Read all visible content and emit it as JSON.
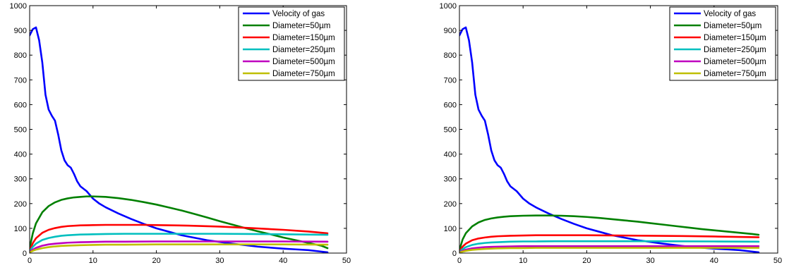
{
  "chart_data": [
    {
      "type": "line",
      "title": "",
      "xlabel": "",
      "ylabel": "",
      "xlim": [
        0,
        50
      ],
      "ylim": [
        0,
        1000
      ],
      "xticks": [
        "0",
        "10",
        "20",
        "30",
        "40",
        "50"
      ],
      "yticks": [
        "0",
        "100",
        "200",
        "300",
        "400",
        "500",
        "600",
        "700",
        "800",
        "900",
        "1000"
      ],
      "grid": false,
      "legend_position": "top-right",
      "series": [
        {
          "name": "Velocity of gas",
          "color": "#0000ff",
          "x": [
            0,
            0.5,
            1,
            1.5,
            2,
            2.5,
            3,
            3.5,
            4,
            4.5,
            5,
            5.5,
            6,
            6.5,
            7,
            7.5,
            8,
            9,
            10,
            11,
            12,
            14,
            16,
            18,
            20,
            22,
            24,
            26,
            28,
            30,
            32,
            34,
            36,
            38,
            40,
            42,
            44,
            46,
            47
          ],
          "y": [
            880,
            905,
            912,
            860,
            770,
            640,
            580,
            555,
            535,
            480,
            415,
            375,
            355,
            345,
            320,
            290,
            270,
            250,
            220,
            200,
            185,
            160,
            138,
            118,
            100,
            86,
            72,
            62,
            52,
            45,
            38,
            32,
            26,
            22,
            18,
            15,
            12,
            6,
            3
          ]
        },
        {
          "name": "Diameter=50µm",
          "color": "#008000",
          "x": [
            0,
            0.5,
            1,
            2,
            3,
            4,
            5,
            6,
            7,
            8,
            9,
            10,
            12,
            14,
            16,
            18,
            20,
            22,
            24,
            26,
            28,
            30,
            32,
            34,
            36,
            38,
            40,
            42,
            44,
            46,
            47
          ],
          "y": [
            20,
            80,
            120,
            165,
            190,
            205,
            215,
            221,
            225,
            227,
            229,
            229,
            227,
            222,
            215,
            206,
            196,
            184,
            172,
            158,
            144,
            129,
            115,
            101,
            88,
            76,
            63,
            52,
            41,
            30,
            20
          ]
        },
        {
          "name": "Diameter=150µm",
          "color": "#ff0000",
          "x": [
            0,
            0.5,
            1,
            2,
            3,
            4,
            5,
            6,
            8,
            10,
            12,
            14,
            16,
            18,
            20,
            25,
            30,
            35,
            40,
            44,
            47
          ],
          "y": [
            10,
            40,
            60,
            82,
            94,
            101,
            106,
            109,
            112,
            113,
            114,
            114,
            114,
            114,
            113,
            111,
            107,
            101,
            94,
            87,
            80
          ]
        },
        {
          "name": "Diameter=250µm",
          "color": "#00bfbf",
          "x": [
            0,
            0.5,
            1,
            2,
            3,
            4,
            5,
            6,
            8,
            10,
            12,
            15,
            20,
            25,
            30,
            35,
            40,
            47
          ],
          "y": [
            8,
            25,
            38,
            53,
            61,
            66,
            70,
            72,
            75,
            76,
            77,
            78,
            78,
            78,
            78,
            77,
            76,
            74
          ]
        },
        {
          "name": "Diameter=500µm",
          "color": "#bf00bf",
          "x": [
            0,
            0.5,
            1,
            2,
            3,
            4,
            5,
            6,
            8,
            10,
            12,
            15,
            20,
            30,
            40,
            47
          ],
          "y": [
            5,
            14,
            21,
            30,
            35,
            38,
            40,
            42,
            44,
            45,
            46,
            46,
            47,
            47,
            47,
            46
          ]
        },
        {
          "name": "Diameter=750µm",
          "color": "#bfbf00",
          "x": [
            0,
            0.5,
            1,
            2,
            3,
            4,
            5,
            6,
            8,
            10,
            12,
            15,
            20,
            30,
            40,
            47
          ],
          "y": [
            3,
            9,
            14,
            20,
            24,
            27,
            29,
            30,
            32,
            33,
            34,
            34,
            35,
            35,
            35,
            34
          ]
        }
      ]
    },
    {
      "type": "line",
      "title": "",
      "xlabel": "",
      "ylabel": "",
      "xlim": [
        0,
        50
      ],
      "ylim": [
        0,
        1000
      ],
      "xticks": [
        "0",
        "10",
        "20",
        "30",
        "40",
        "50"
      ],
      "yticks": [
        "0",
        "100",
        "200",
        "300",
        "400",
        "500",
        "600",
        "700",
        "800",
        "900",
        "1000"
      ],
      "grid": false,
      "legend_position": "top-right",
      "series": [
        {
          "name": "Velocity of gas",
          "color": "#0000ff",
          "x": [
            0,
            0.5,
            1,
            1.5,
            2,
            2.5,
            3,
            3.5,
            4,
            4.5,
            5,
            5.5,
            6,
            6.5,
            7,
            7.5,
            8,
            9,
            10,
            11,
            12,
            14,
            16,
            18,
            20,
            22,
            24,
            26,
            28,
            30,
            32,
            34,
            36,
            38,
            40,
            42,
            44,
            46,
            47
          ],
          "y": [
            880,
            905,
            912,
            860,
            770,
            640,
            580,
            555,
            535,
            480,
            415,
            375,
            355,
            345,
            320,
            290,
            270,
            250,
            220,
            200,
            185,
            160,
            138,
            118,
            100,
            86,
            72,
            62,
            52,
            45,
            38,
            32,
            26,
            22,
            18,
            15,
            12,
            6,
            3
          ]
        },
        {
          "name": "Diameter=50µm",
          "color": "#008000",
          "x": [
            0,
            0.5,
            1,
            2,
            3,
            4,
            5,
            6,
            7,
            8,
            10,
            12,
            14,
            16,
            18,
            20,
            22,
            24,
            26,
            28,
            30,
            32,
            34,
            36,
            38,
            40,
            42,
            44,
            46,
            47
          ],
          "y": [
            12,
            55,
            80,
            108,
            124,
            134,
            140,
            144,
            147,
            149,
            151,
            152,
            152,
            151,
            149,
            146,
            142,
            137,
            132,
            127,
            121,
            115,
            109,
            103,
            97,
            92,
            87,
            82,
            77,
            74
          ]
        },
        {
          "name": "Diameter=150µm",
          "color": "#ff0000",
          "x": [
            0,
            0.5,
            1,
            2,
            3,
            4,
            5,
            6,
            8,
            10,
            12,
            15,
            20,
            25,
            30,
            35,
            40,
            47
          ],
          "y": [
            6,
            26,
            38,
            52,
            59,
            63,
            66,
            68,
            70,
            71,
            72,
            72,
            72,
            71,
            70,
            69,
            67,
            64
          ]
        },
        {
          "name": "Diameter=250µm",
          "color": "#00bfbf",
          "x": [
            0,
            0.5,
            1,
            2,
            3,
            4,
            5,
            6,
            8,
            10,
            12,
            15,
            20,
            30,
            40,
            47
          ],
          "y": [
            4,
            16,
            24,
            33,
            38,
            41,
            43,
            44,
            46,
            47,
            47,
            48,
            48,
            48,
            47,
            46
          ]
        },
        {
          "name": "Diameter=500µm",
          "color": "#bf00bf",
          "x": [
            0,
            0.5,
            1,
            2,
            3,
            4,
            5,
            6,
            8,
            10,
            12,
            15,
            20,
            30,
            40,
            47
          ],
          "y": [
            3,
            9,
            14,
            19,
            22,
            24,
            25,
            26,
            27,
            28,
            28,
            28,
            28,
            28,
            28,
            28
          ]
        },
        {
          "name": "Diameter=750µm",
          "color": "#bfbf00",
          "x": [
            0,
            0.5,
            1,
            2,
            3,
            4,
            5,
            6,
            8,
            10,
            12,
            15,
            20,
            30,
            40,
            47
          ],
          "y": [
            2,
            6,
            9,
            13,
            15,
            17,
            18,
            19,
            20,
            20,
            21,
            21,
            21,
            21,
            21,
            21
          ]
        }
      ]
    }
  ]
}
